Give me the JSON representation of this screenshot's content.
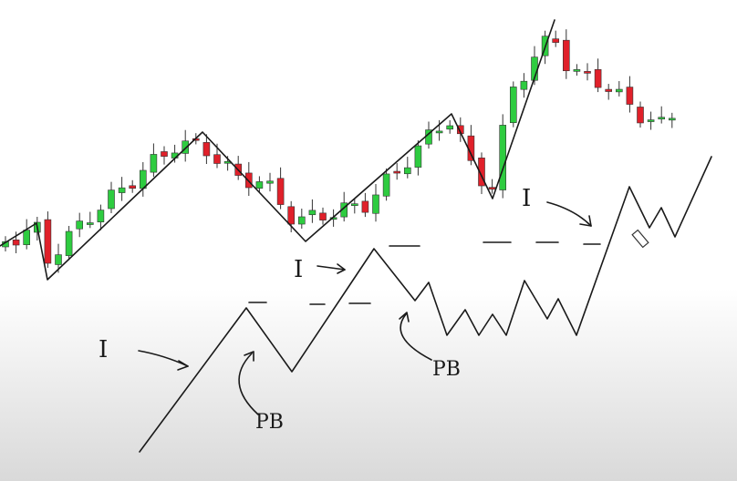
{
  "labels": {
    "impulse_1": "I",
    "impulse_2": "I",
    "impulse_3": "I",
    "pullback_1": "PB",
    "pullback_2": "PB"
  }
}
